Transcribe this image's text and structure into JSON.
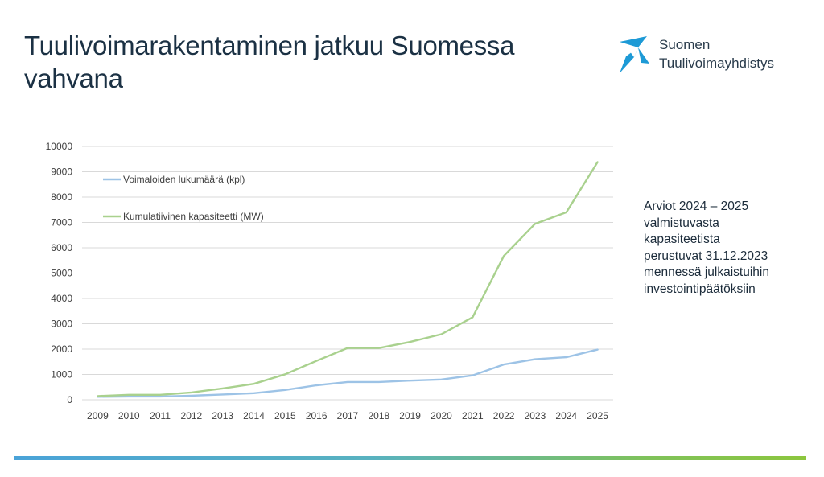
{
  "slide": {
    "title_line1": "Tuulivoimarakentaminen jatkuu Suomessa",
    "title_line2": "vahvana",
    "logo_line1": "Suomen",
    "logo_line2": "Tuulivoimayhdistys",
    "note": "Arviot 2024 –  2025\nvalmistuvasta\nkapasiteetista\nperustuvat 31.12.2023\nmennessä julkaistuihin\ninvestointipäätöksiin",
    "colors": {
      "brand_blue": "#1d9ad6",
      "bar_start": "#4aa3d8",
      "bar_end": "#8cc63e"
    }
  },
  "chart_data": {
    "type": "line",
    "title": "",
    "xlabel": "",
    "ylabel": "",
    "categories": [
      "2009",
      "2010",
      "2011",
      "2012",
      "2013",
      "2014",
      "2015",
      "2016",
      "2017",
      "2018",
      "2019",
      "2020",
      "2021",
      "2022",
      "2023",
      "2024",
      "2025"
    ],
    "ylim": [
      0,
      10000
    ],
    "yticks": [
      "0",
      "1000",
      "2000",
      "3000",
      "4000",
      "5000",
      "6000",
      "7000",
      "8000",
      "9000",
      "10000"
    ],
    "grid": true,
    "legend_position": "top-left",
    "series": [
      {
        "name": "Voimaloiden lukumäärä (kpl)",
        "color": "#9dc3e6",
        "values": [
          118,
          130,
          131,
          163,
          211,
          260,
          387,
          570,
          700,
          700,
          754,
          800,
          962,
          1393,
          1601,
          1680,
          1980
        ]
      },
      {
        "name": "Kumulatiivinen kapasiteetti (MW)",
        "color": "#a9d18e",
        "values": [
          146,
          197,
          197,
          288,
          448,
          627,
          1005,
          1533,
          2044,
          2041,
          2284,
          2586,
          3257,
          5677,
          6946,
          7400,
          9380
        ]
      }
    ]
  }
}
